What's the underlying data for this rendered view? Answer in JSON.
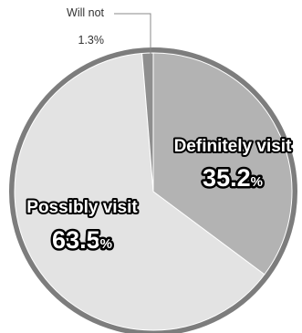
{
  "chart_data": {
    "type": "pie",
    "slices": [
      {
        "label": "Definitely visit",
        "value": 35.2,
        "value_text": "35.2",
        "color": "#b3b3b3"
      },
      {
        "label": "Possibly visit",
        "value": 63.5,
        "value_text": "63.5",
        "color": "#e3e3e3"
      },
      {
        "label": "Will not",
        "value": 1.3,
        "value_text": "1.3%",
        "color": "#8f8f8f"
      }
    ],
    "percent_sign": "%",
    "start": "top, clockwise",
    "border_color": "#7d7d7d"
  }
}
